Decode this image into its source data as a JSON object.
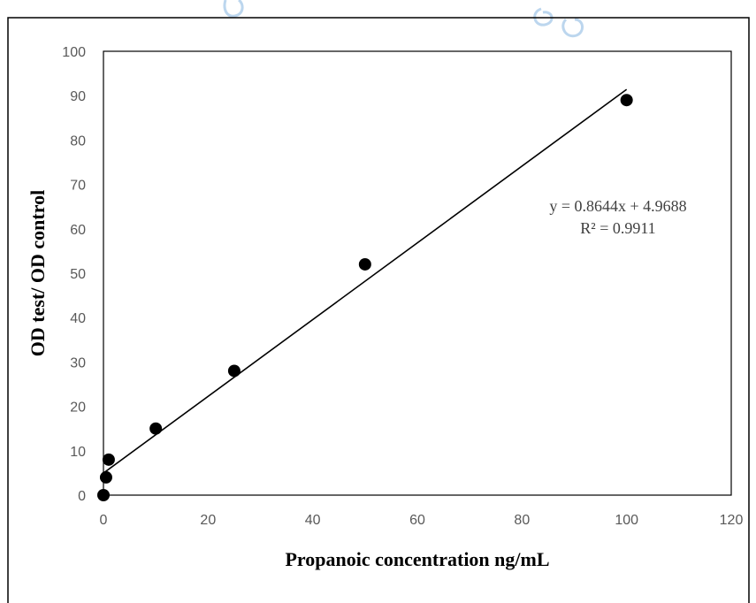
{
  "chart_data": {
    "type": "scatter",
    "xlabel": "Propanoic concentration ng/mL",
    "ylabel": "OD test/ OD control",
    "xlim": [
      0,
      120
    ],
    "ylim": [
      0,
      100
    ],
    "x_ticks": [
      "0",
      "20",
      "40",
      "60",
      "80",
      "100",
      "120"
    ],
    "y_ticks": [
      "0",
      "10",
      "20",
      "30",
      "40",
      "50",
      "60",
      "70",
      "80",
      "90",
      "100"
    ],
    "grid": false,
    "series": [
      {
        "points": [
          {
            "x": 0,
            "y": 0
          },
          {
            "x": 0.5,
            "y": 4
          },
          {
            "x": 1,
            "y": 8
          },
          {
            "x": 10,
            "y": 15
          },
          {
            "x": 25,
            "y": 28
          },
          {
            "x": 50,
            "y": 52
          },
          {
            "x": 100,
            "y": 89
          }
        ],
        "color": "#000000"
      }
    ],
    "trendline": {
      "type": "linear",
      "slope": 0.8644,
      "intercept": 4.9688,
      "x_range": [
        0,
        100
      ],
      "equation_text": "y = 0.8644x + 4.9688",
      "r2_text": "R² = 0.9911",
      "color": "#000000"
    },
    "watermark_color": "#bcd6ee"
  }
}
